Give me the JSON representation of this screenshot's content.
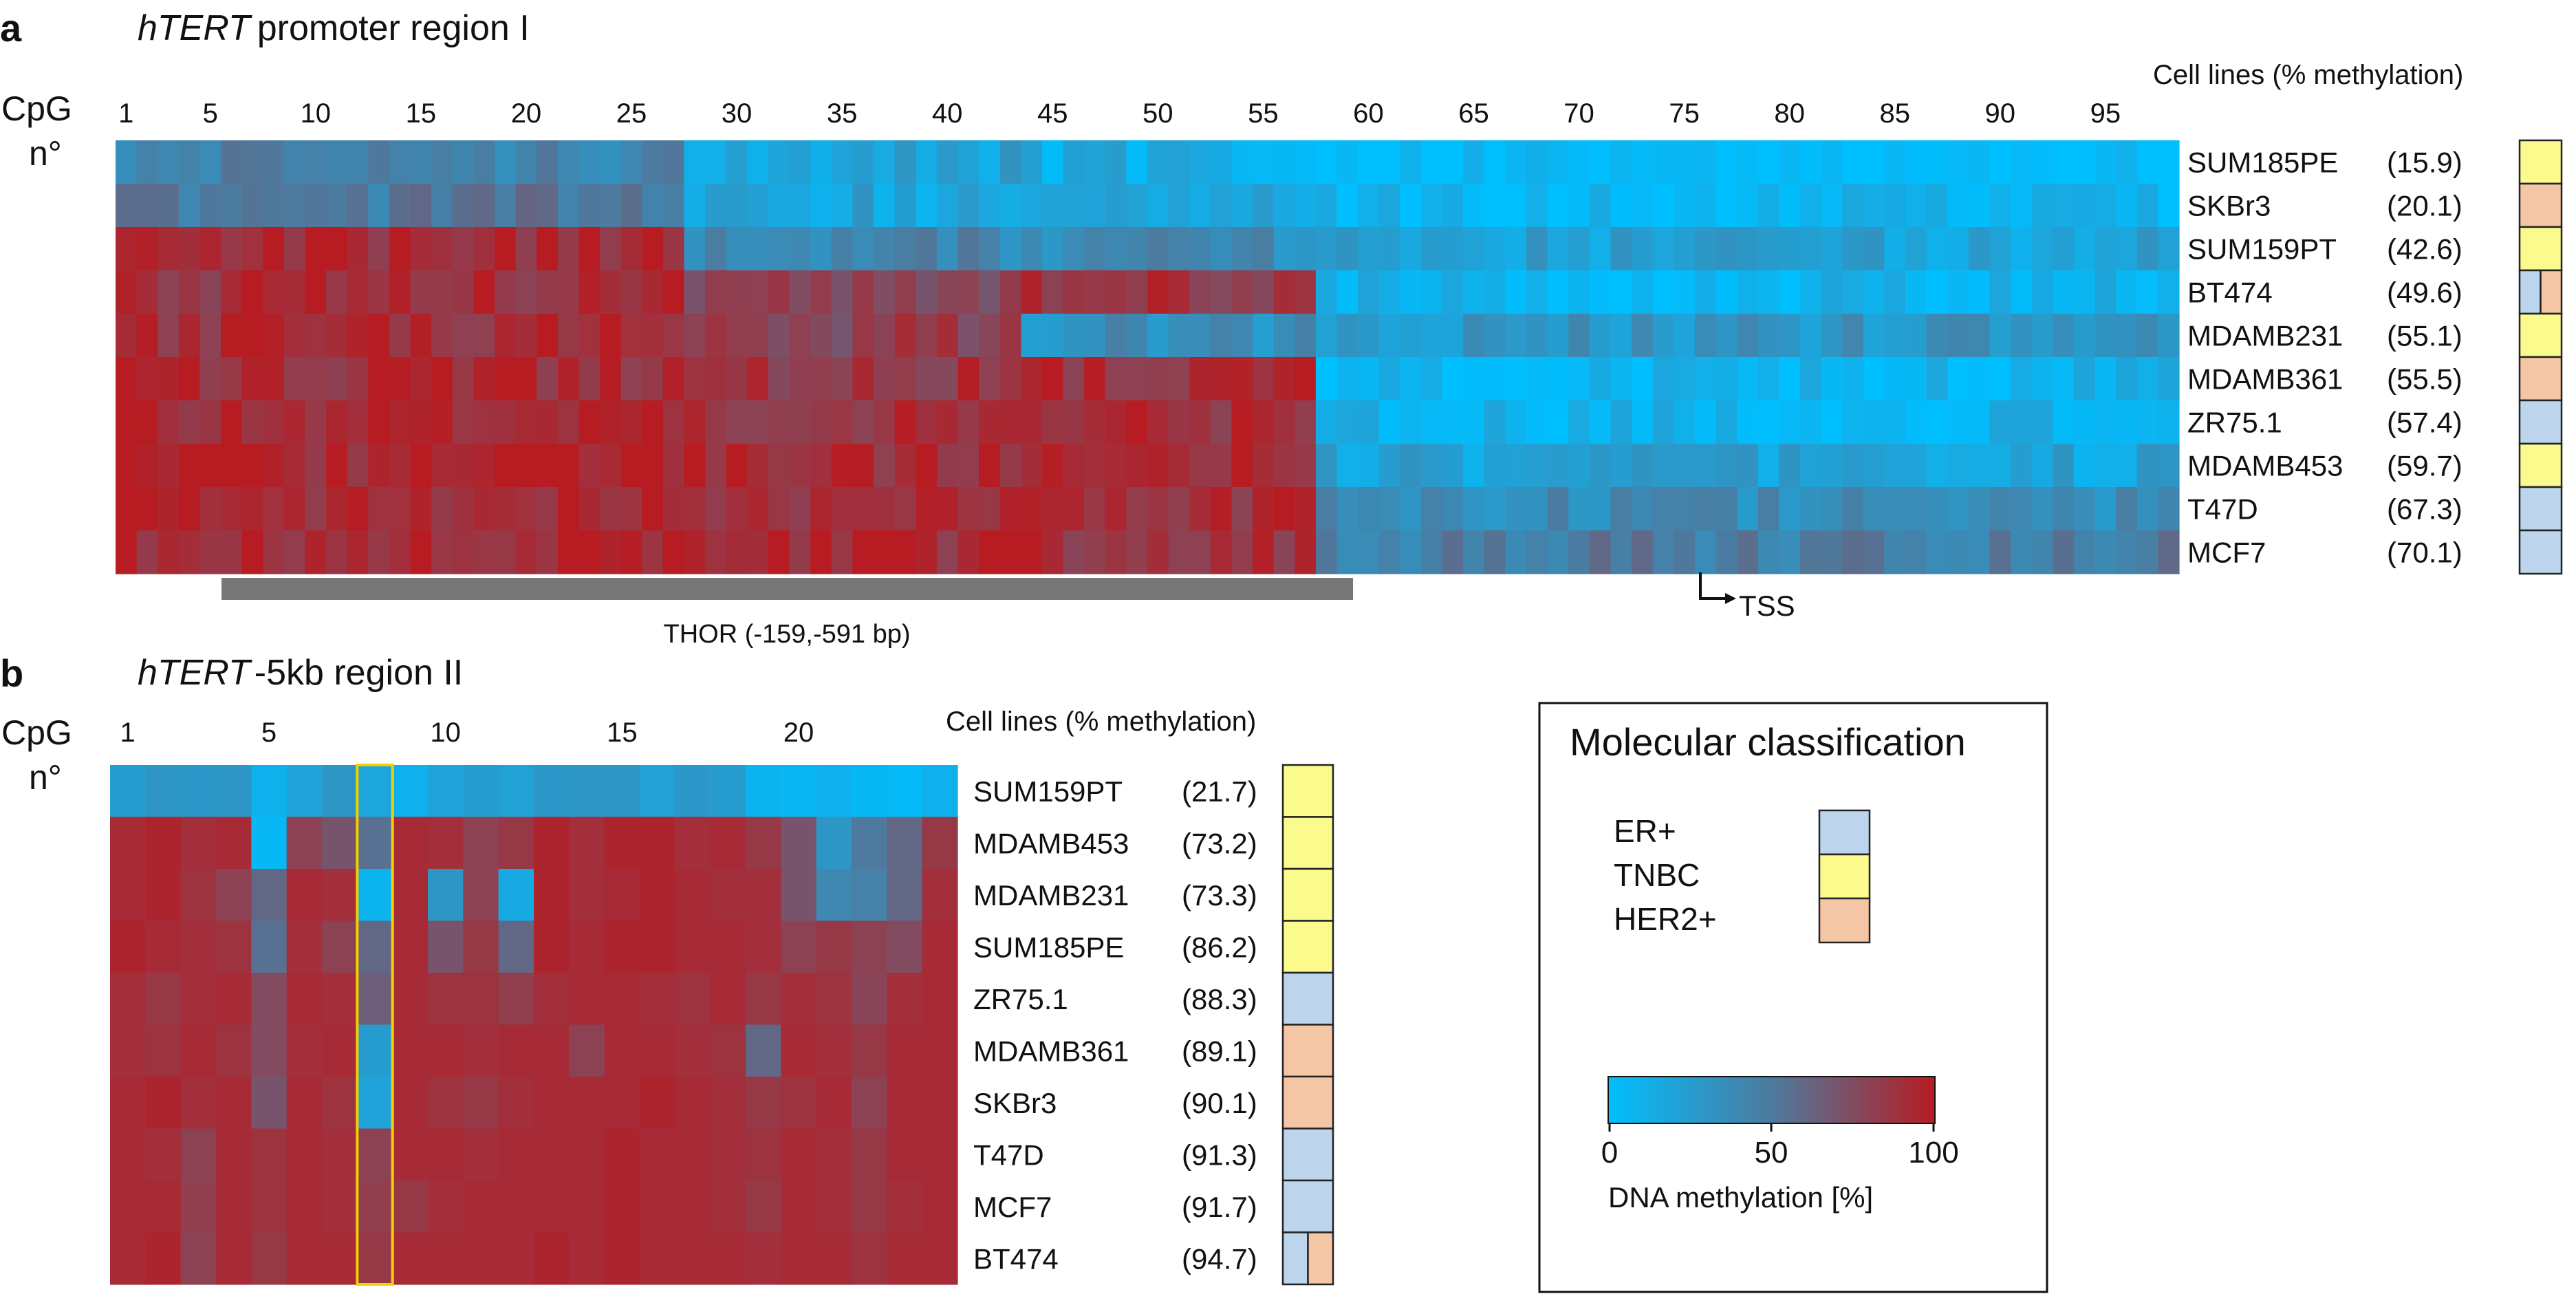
{
  "panel_a": {
    "letter": "a",
    "title_gene": "hTERT",
    "title_rest": "promoter region I",
    "cpg_label": "CpG",
    "cpg_sub": "n°",
    "cells_header": "Cell lines (% methylation)",
    "thor_label": "THOR (-159,-591 bp)",
    "tss_label": "TSS"
  },
  "panel_b": {
    "letter": "b",
    "title_gene": "hTERT",
    "title_rest": "-5kb region II",
    "cpg_label": "CpG",
    "cpg_sub": "n°",
    "cells_header": "Cell lines (% methylation)"
  },
  "legend": {
    "title": "Molecular classification",
    "classes": [
      {
        "label": "ER+",
        "key": "ER+"
      },
      {
        "label": "TNBC",
        "key": "TNBC"
      },
      {
        "label": "HER2+",
        "key": "HER2+"
      }
    ],
    "colorbar_ticks": [
      "0",
      "50",
      "100"
    ],
    "colorbar_label": "DNA methylation [%]"
  },
  "colors": {
    "low": "#00bfff",
    "mid": "#4d7a9e",
    "high": "#b71c22",
    "ER+": "#bcd5ec",
    "TNBC": "#fbfb8d",
    "HER2+": "#f5c6a5",
    "thor_bar": "#777777",
    "highlight": "#f5d000"
  },
  "chart_data": [
    {
      "type": "heatmap",
      "title": "hTERT promoter region I",
      "xlabel": "CpG n°",
      "ylabel": "Cell lines (% methylation)",
      "n_cpg": 98,
      "x_ticks": [
        1,
        5,
        10,
        15,
        20,
        25,
        30,
        35,
        40,
        45,
        50,
        55,
        60,
        65,
        70,
        75,
        80,
        85,
        90,
        95
      ],
      "value_range": [
        0,
        100
      ],
      "annotations": {
        "THOR": "THOR (-159,-591 bp)",
        "TSS": "TSS"
      },
      "rows": [
        {
          "cell_line": "SUM185PE",
          "pct": "(15.9)",
          "classes": [
            "TNBC"
          ],
          "segments": [
            [
              1,
              27,
              45
            ],
            [
              28,
              43,
              22
            ],
            [
              44,
              57,
              14
            ],
            [
              58,
              98,
              4
            ]
          ]
        },
        {
          "cell_line": "SKBr3",
          "pct": "(20.1)",
          "classes": [
            "HER2+"
          ],
          "segments": [
            [
              1,
              27,
              50
            ],
            [
              28,
              43,
              20
            ],
            [
              44,
              57,
              16
            ],
            [
              58,
              98,
              6
            ]
          ]
        },
        {
          "cell_line": "SUM159PT",
          "pct": "(42.6)",
          "classes": [
            "TNBC"
          ],
          "segments": [
            [
              1,
              27,
              92
            ],
            [
              28,
              43,
              40
            ],
            [
              44,
              57,
              38
            ],
            [
              58,
              98,
              22
            ]
          ]
        },
        {
          "cell_line": "BT474",
          "pct": "(49.6)",
          "classes": [
            "ER+",
            "HER2+"
          ],
          "segments": [
            [
              1,
              27,
              90
            ],
            [
              28,
              43,
              80
            ],
            [
              44,
              57,
              86
            ],
            [
              58,
              98,
              10
            ]
          ]
        },
        {
          "cell_line": "MDAMB231",
          "pct": "(55.1)",
          "classes": [
            "TNBC"
          ],
          "segments": [
            [
              1,
              27,
              90
            ],
            [
              28,
              43,
              80
            ],
            [
              44,
              57,
              35
            ],
            [
              58,
              98,
              30
            ]
          ]
        },
        {
          "cell_line": "MDAMB361",
          "pct": "(55.5)",
          "classes": [
            "HER2+"
          ],
          "segments": [
            [
              1,
              27,
              92
            ],
            [
              28,
              43,
              88
            ],
            [
              44,
              57,
              90
            ],
            [
              58,
              98,
              8
            ]
          ]
        },
        {
          "cell_line": "ZR75.1",
          "pct": "(57.4)",
          "classes": [
            "ER+"
          ],
          "segments": [
            [
              1,
              27,
              94
            ],
            [
              28,
              43,
              90
            ],
            [
              44,
              57,
              90
            ],
            [
              58,
              98,
              10
            ]
          ]
        },
        {
          "cell_line": "MDAMB453",
          "pct": "(59.7)",
          "classes": [
            "TNBC"
          ],
          "segments": [
            [
              1,
              27,
              95
            ],
            [
              28,
              43,
              92
            ],
            [
              44,
              57,
              93
            ],
            [
              58,
              98,
              20
            ]
          ]
        },
        {
          "cell_line": "T47D",
          "pct": "(67.3)",
          "classes": [
            "ER+"
          ],
          "segments": [
            [
              1,
              27,
              93
            ],
            [
              28,
              43,
              92
            ],
            [
              44,
              57,
              90
            ],
            [
              58,
              98,
              38
            ]
          ]
        },
        {
          "cell_line": "MCF7",
          "pct": "(70.1)",
          "classes": [
            "ER+"
          ],
          "segments": [
            [
              1,
              27,
              94
            ],
            [
              28,
              43,
              92
            ],
            [
              44,
              57,
              90
            ],
            [
              58,
              98,
              48
            ]
          ]
        }
      ]
    },
    {
      "type": "heatmap",
      "title": "hTERT -5kb region II",
      "xlabel": "CpG n°",
      "ylabel": "Cell lines (% methylation)",
      "n_cpg": 24,
      "x_ticks": [
        1,
        5,
        10,
        15,
        20
      ],
      "highlight_cpg": 8,
      "value_range": [
        0,
        100
      ],
      "rows": [
        {
          "cell_line": "SUM159PT",
          "pct": "(21.7)",
          "classes": [
            "TNBC"
          ],
          "values": [
            25,
            30,
            28,
            30,
            10,
            20,
            30,
            18,
            10,
            20,
            25,
            22,
            28,
            30,
            30,
            22,
            28,
            25,
            8,
            6,
            10,
            5,
            4,
            10
          ]
        },
        {
          "cell_line": "MDAMB453",
          "pct": "(73.2)",
          "classes": [
            "TNBC"
          ],
          "values": [
            92,
            95,
            90,
            92,
            5,
            80,
            70,
            55,
            92,
            90,
            80,
            85,
            95,
            90,
            95,
            95,
            90,
            92,
            85,
            70,
            30,
            50,
            60,
            85
          ]
        },
        {
          "cell_line": "MDAMB231",
          "pct": "(73.3)",
          "classes": [
            "TNBC"
          ],
          "values": [
            92,
            95,
            88,
            80,
            60,
            92,
            90,
            8,
            92,
            30,
            80,
            15,
            95,
            90,
            92,
            95,
            92,
            90,
            90,
            70,
            40,
            45,
            60,
            90
          ]
        },
        {
          "cell_line": "SUM185PE",
          "pct": "(86.2)",
          "classes": [
            "TNBC"
          ],
          "values": [
            95,
            92,
            90,
            88,
            55,
            90,
            80,
            60,
            92,
            70,
            85,
            60,
            95,
            92,
            95,
            95,
            92,
            92,
            90,
            80,
            85,
            80,
            75,
            92
          ]
        },
        {
          "cell_line": "ZR75.1",
          "pct": "(88.3)",
          "classes": [
            "ER+"
          ],
          "values": [
            90,
            85,
            90,
            92,
            75,
            92,
            90,
            65,
            92,
            88,
            88,
            82,
            90,
            92,
            92,
            90,
            88,
            92,
            85,
            90,
            88,
            78,
            90,
            92
          ]
        },
        {
          "cell_line": "MDAMB361",
          "pct": "(89.1)",
          "classes": [
            "HER2+"
          ],
          "values": [
            90,
            88,
            92,
            88,
            75,
            90,
            92,
            25,
            92,
            92,
            90,
            92,
            92,
            80,
            92,
            92,
            90,
            88,
            60,
            92,
            90,
            85,
            92,
            92
          ]
        },
        {
          "cell_line": "SKBr3",
          "pct": "(90.1)",
          "classes": [
            "HER2+"
          ],
          "values": [
            92,
            95,
            90,
            92,
            70,
            92,
            88,
            20,
            92,
            88,
            85,
            90,
            92,
            92,
            92,
            95,
            92,
            90,
            85,
            88,
            92,
            80,
            92,
            92
          ]
        },
        {
          "cell_line": "T47D",
          "pct": "(91.3)",
          "classes": [
            "ER+"
          ],
          "values": [
            92,
            90,
            80,
            92,
            88,
            92,
            90,
            80,
            92,
            92,
            90,
            92,
            92,
            92,
            95,
            92,
            92,
            90,
            88,
            92,
            90,
            85,
            92,
            92
          ]
        },
        {
          "cell_line": "MCF7",
          "pct": "(91.7)",
          "classes": [
            "ER+"
          ],
          "values": [
            92,
            92,
            82,
            92,
            88,
            92,
            90,
            82,
            85,
            90,
            92,
            92,
            92,
            92,
            95,
            92,
            92,
            90,
            85,
            92,
            90,
            85,
            90,
            92
          ]
        },
        {
          "cell_line": "BT474",
          "pct": "(94.7)",
          "classes": [
            "ER+",
            "HER2+"
          ],
          "values": [
            92,
            95,
            80,
            92,
            85,
            92,
            92,
            85,
            92,
            92,
            92,
            92,
            95,
            92,
            95,
            92,
            92,
            92,
            90,
            92,
            92,
            88,
            92,
            92
          ]
        }
      ]
    }
  ]
}
